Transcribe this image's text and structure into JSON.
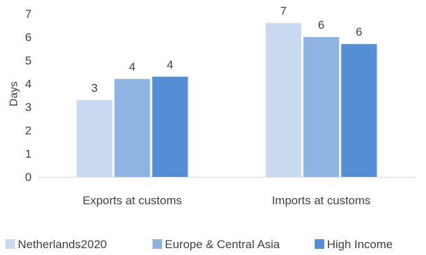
{
  "chart_data": {
    "type": "bar",
    "categories": [
      "Exports at customs",
      "Imports at customs"
    ],
    "series": [
      {
        "name": "Netherlands2020",
        "color": "#c9d9f0",
        "values": [
          3.3,
          6.6
        ],
        "labels": [
          "3",
          "7"
        ]
      },
      {
        "name": "Europe & Central Asia",
        "color": "#8fb4e3",
        "values": [
          4.2,
          6.0
        ],
        "labels": [
          "4",
          "6"
        ]
      },
      {
        "name": "High Income",
        "color": "#558ed5",
        "values": [
          4.3,
          5.7
        ],
        "labels": [
          "4",
          "6"
        ]
      }
    ],
    "title": "",
    "xlabel": "",
    "ylabel": "Days",
    "ylim": [
      0,
      7
    ],
    "yticks": [
      "0",
      "1",
      "2",
      "3",
      "4",
      "5",
      "6",
      "7"
    ],
    "grid": false,
    "legend_position": "bottom"
  }
}
